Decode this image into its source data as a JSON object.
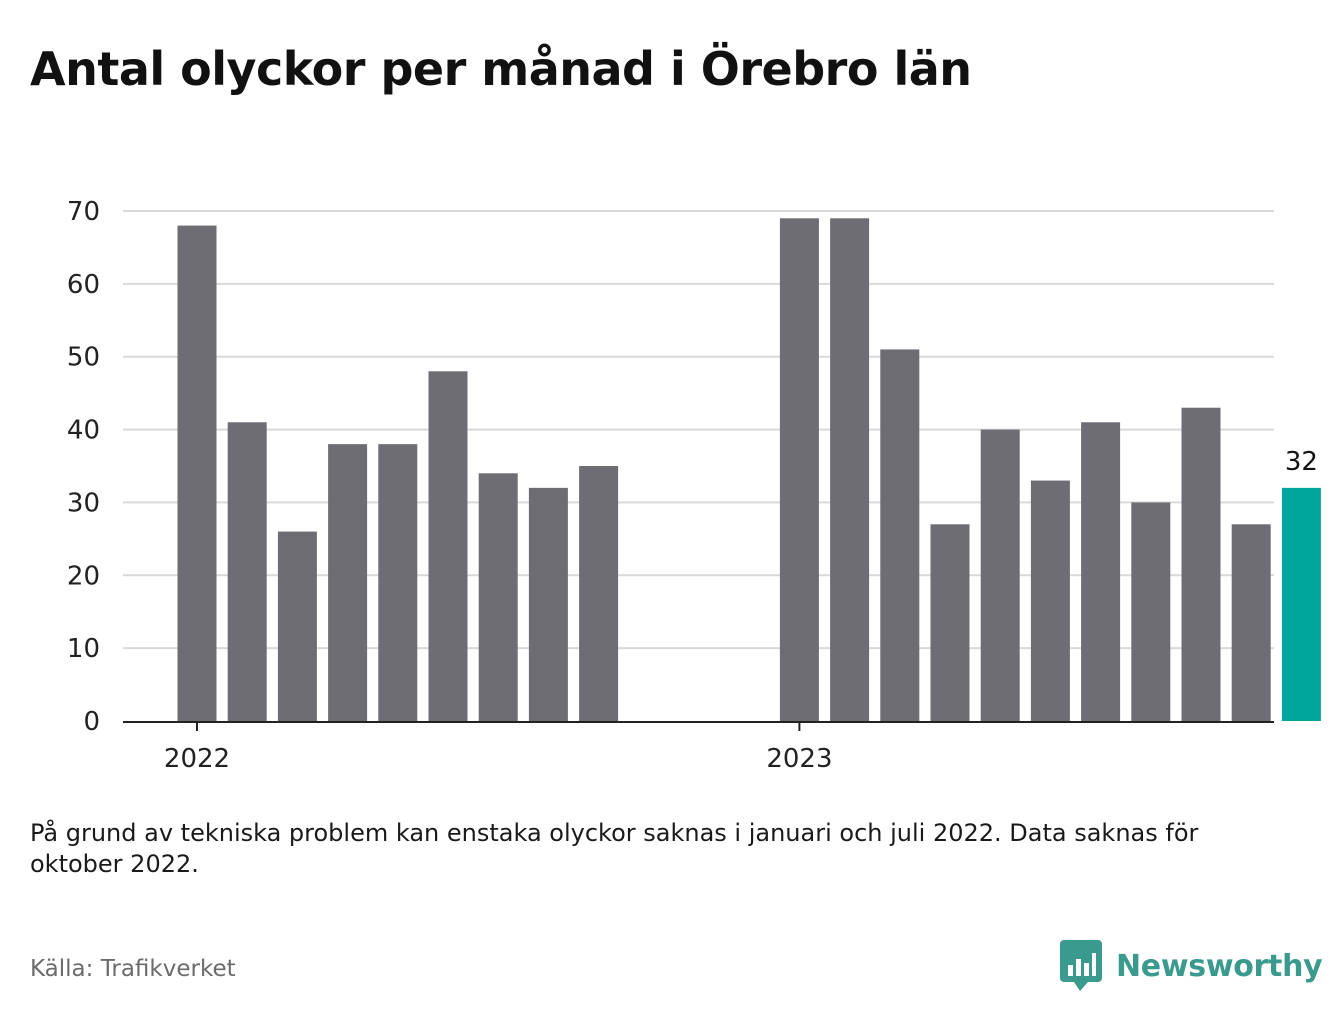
{
  "header": {
    "title": "Antal olyckor per månad i Örebro län"
  },
  "footer": {
    "note": "På grund av tekniska problem kan enstaka olyckor saknas i januari och juli 2022. Data saknas för oktober 2022.",
    "source": "Källa: Trafikverket",
    "brand": "Newsworthy",
    "brand_icon": "newsworthy-logo-icon"
  },
  "colors": {
    "bar": "#6e6d73",
    "highlight": "#00a69b",
    "grid": "#d9d9d9",
    "axis": "#222222",
    "brand": "#3a9a8e"
  },
  "chart_data": {
    "type": "bar",
    "title": "Antal olyckor per månad i Örebro län",
    "xlabel": "",
    "ylabel": "",
    "ylim": [
      0,
      70
    ],
    "yticks": [
      0,
      10,
      20,
      30,
      40,
      50,
      60,
      70
    ],
    "grid": true,
    "legend": "none",
    "year_labels": [
      {
        "label": "2022",
        "at_index": 0
      },
      {
        "label": "2023",
        "at_index": 12
      }
    ],
    "categories": [
      "2022-01",
      "2022-02",
      "2022-03",
      "2022-04",
      "2022-05",
      "2022-06",
      "2022-07",
      "2022-08",
      "2022-09",
      "2022-10",
      "2022-11",
      "2022-12",
      "2023-01",
      "2023-02",
      "2023-03",
      "2023-04",
      "2023-05",
      "2023-06",
      "2023-07",
      "2023-08",
      "2023-09",
      "2023-10",
      "2023-11"
    ],
    "values": [
      68,
      41,
      26,
      38,
      38,
      48,
      34,
      32,
      35,
      null,
      null,
      null,
      69,
      69,
      51,
      27,
      40,
      33,
      41,
      30,
      43,
      27,
      32
    ],
    "highlight_index": 22,
    "highlight_label": "32"
  }
}
